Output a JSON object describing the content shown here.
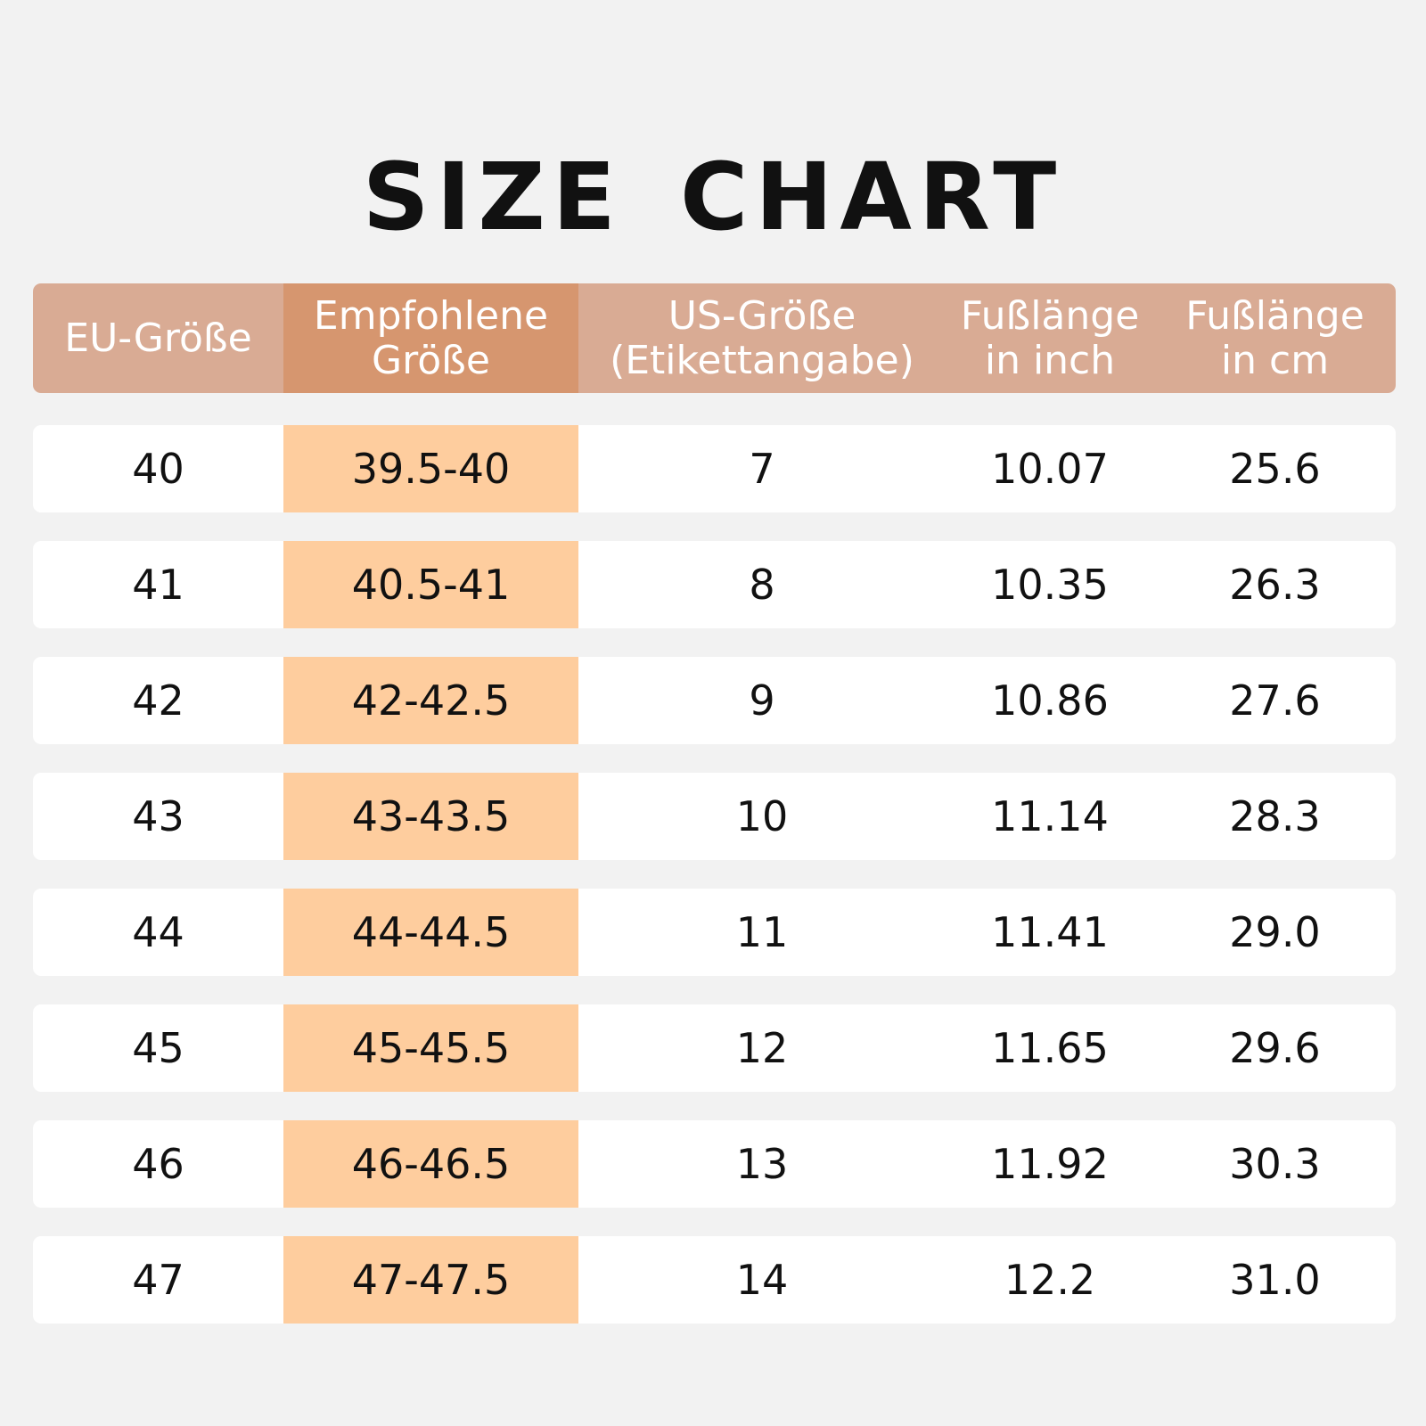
{
  "header": {
    "title": "SIZE CHART"
  },
  "table": {
    "columns": [
      [
        "EU-Größe"
      ],
      [
        "Empfohlene",
        "Größe"
      ],
      [
        "US-Größe",
        "(Etikettangabe)"
      ],
      [
        "Fußlänge",
        "in inch"
      ],
      [
        "Fußlänge",
        "in cm"
      ]
    ],
    "rows": [
      [
        "40",
        "39.5-40",
        "7",
        "10.07",
        "25.6"
      ],
      [
        "41",
        "40.5-41",
        "8",
        "10.35",
        "26.3"
      ],
      [
        "42",
        "42-42.5",
        "9",
        "10.86",
        "27.6"
      ],
      [
        "43",
        "43-43.5",
        "10",
        "11.14",
        "28.3"
      ],
      [
        "44",
        "44-44.5",
        "11",
        "11.41",
        "29.0"
      ],
      [
        "45",
        "45-45.5",
        "12",
        "11.65",
        "29.6"
      ],
      [
        "46",
        "46-46.5",
        "13",
        "11.92",
        "30.3"
      ],
      [
        "47",
        "47-47.5",
        "14",
        "12.2",
        "31.0"
      ]
    ]
  }
}
